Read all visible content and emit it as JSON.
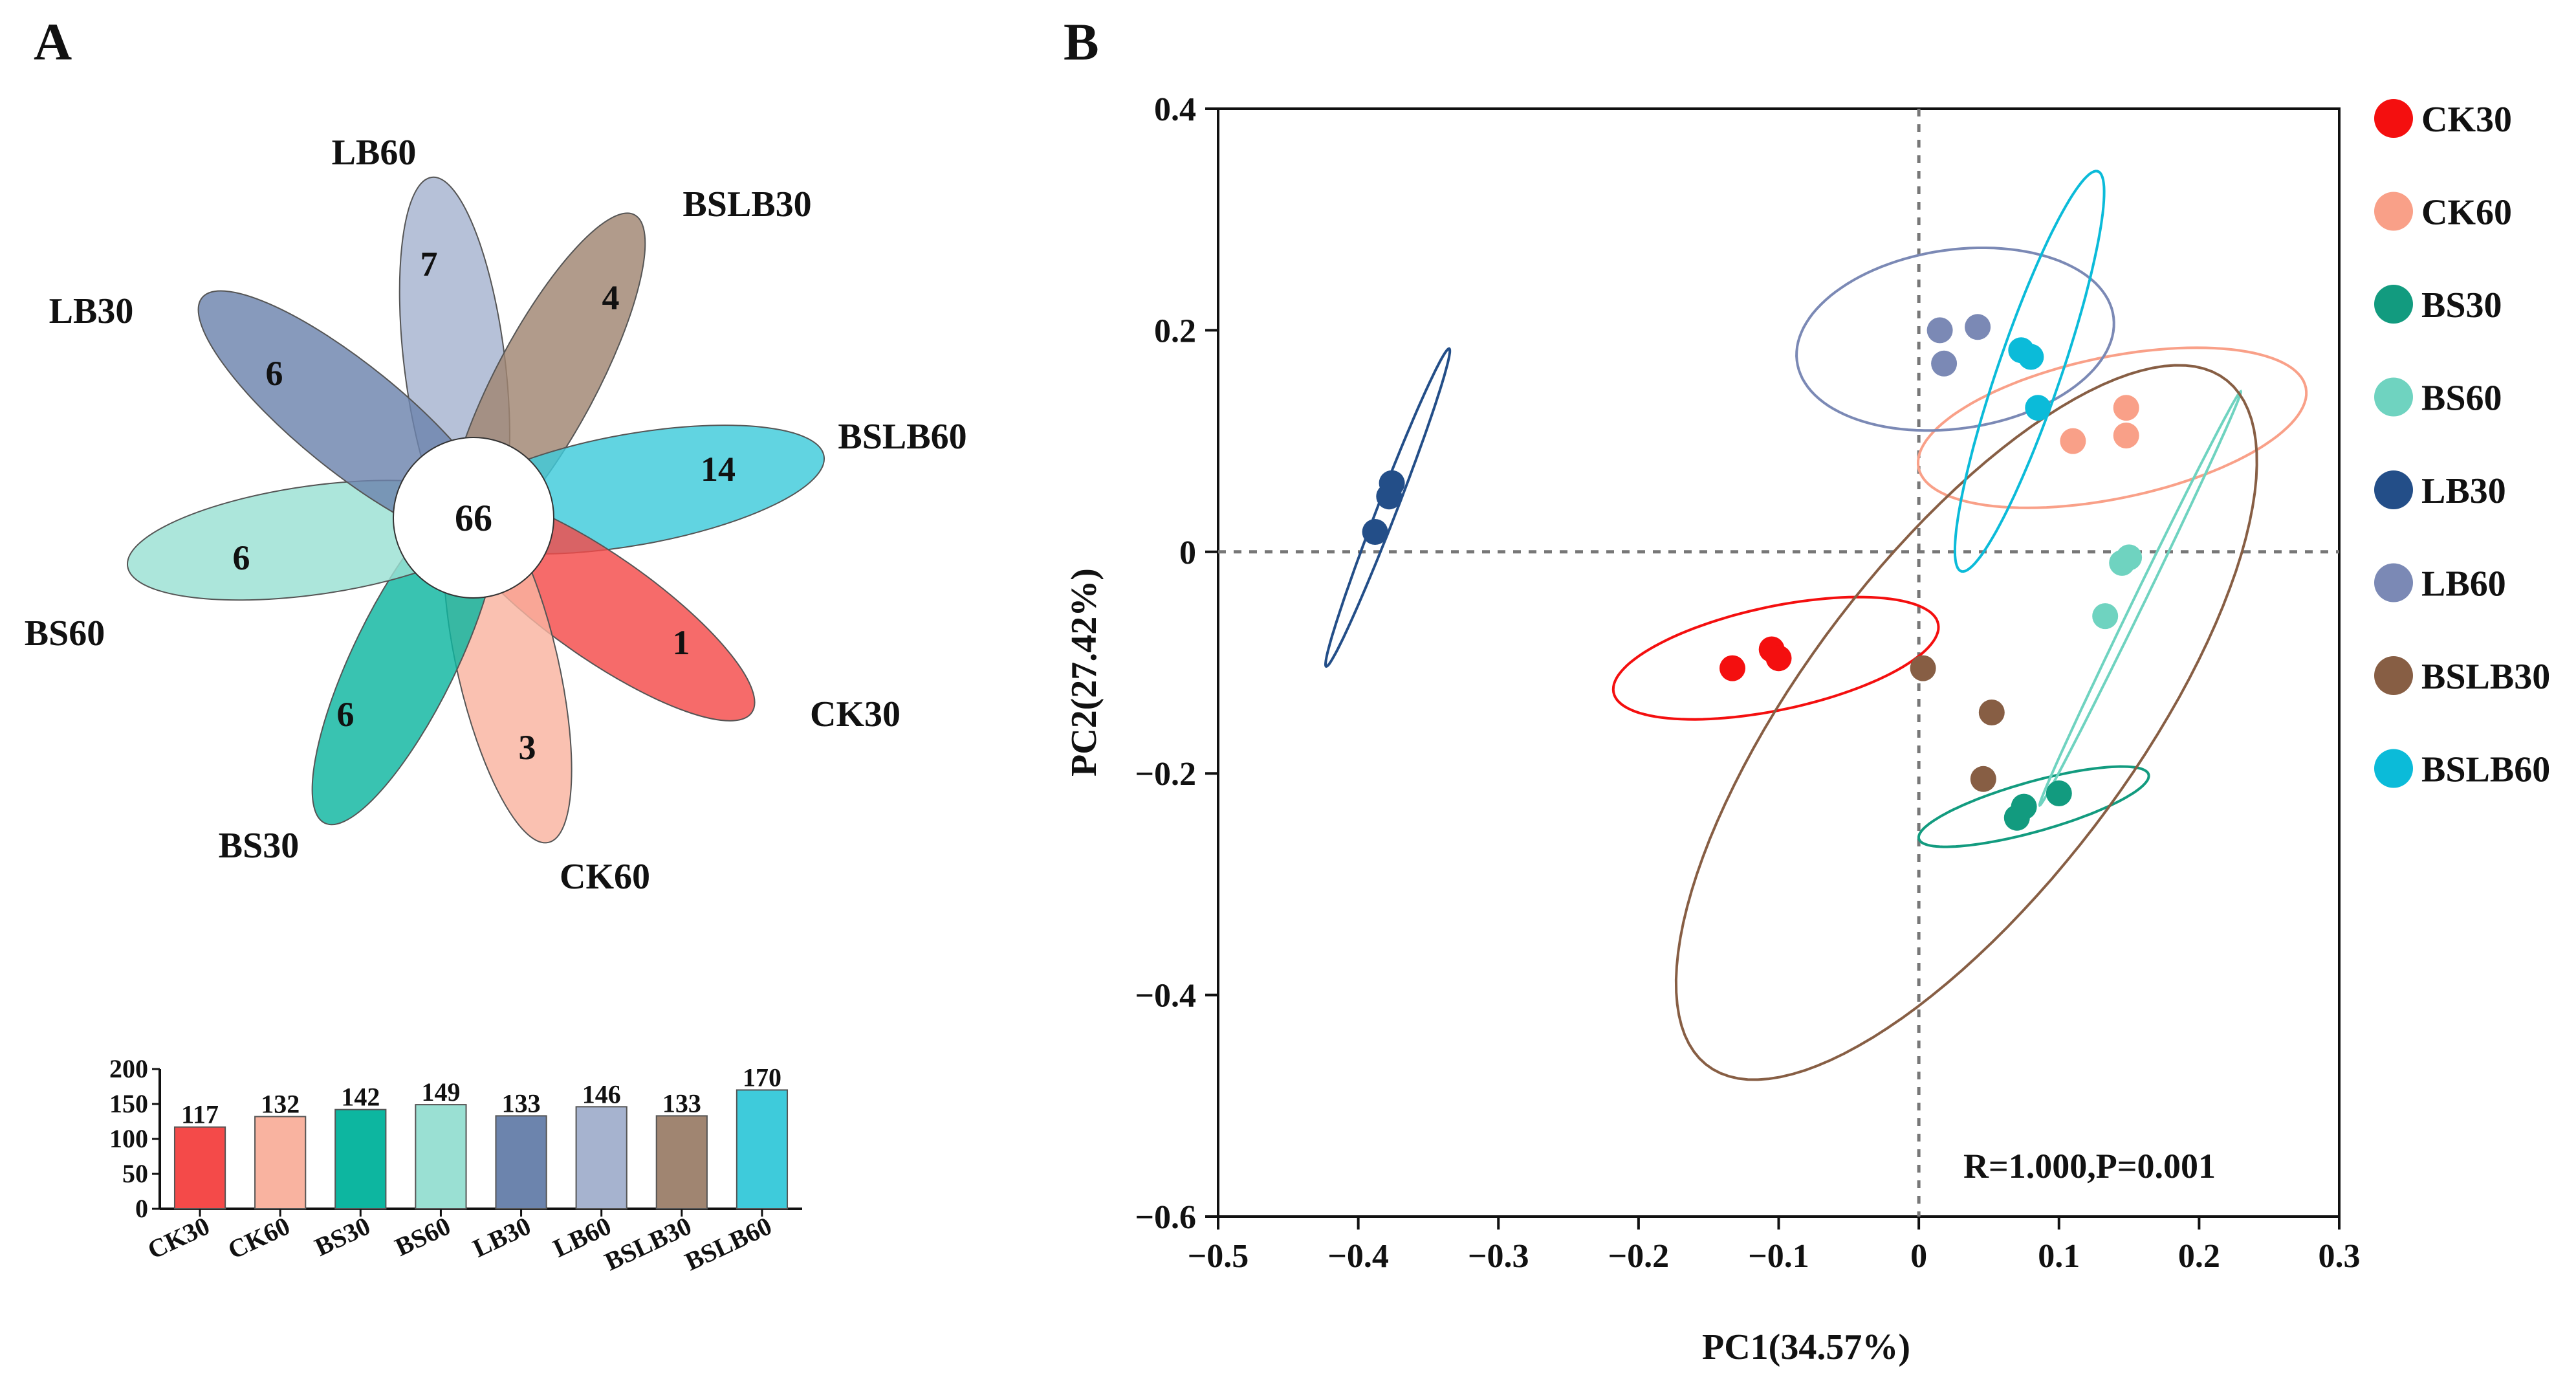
{
  "panels": {
    "a": "A",
    "b": "B"
  },
  "chart_data": [
    {
      "type": "flower-venn",
      "panel": "A",
      "title": "",
      "center_value": 66,
      "petals": [
        {
          "group": "LB60",
          "unique": 7,
          "color": "#a6b3cf"
        },
        {
          "group": "BSLB30",
          "unique": 4,
          "color": "#a08571"
        },
        {
          "group": "BSLB60",
          "unique": 14,
          "color": "#3ecbdb"
        },
        {
          "group": "CK30",
          "unique": 1,
          "color": "#f44a49"
        },
        {
          "group": "CK60",
          "unique": 3,
          "color": "#f9b3a0"
        },
        {
          "group": "BS30",
          "unique": 6,
          "color": "#0db6a0"
        },
        {
          "group": "BS60",
          "unique": 6,
          "color": "#9ae0d3"
        },
        {
          "group": "LB30",
          "unique": 6,
          "color": "#6c84ad"
        }
      ]
    },
    {
      "type": "bar",
      "panel": "A",
      "title": "",
      "xlabel": "",
      "ylabel": "",
      "ylim": [
        0,
        200
      ],
      "yticks": [
        0,
        50,
        100,
        150,
        200
      ],
      "categories": [
        "CK30",
        "CK60",
        "BS30",
        "BS60",
        "LB30",
        "LB60",
        "BSLB30",
        "BSLB60"
      ],
      "values": [
        117,
        132,
        142,
        149,
        133,
        146,
        133,
        170
      ],
      "colors": [
        "#f44a49",
        "#f9b3a0",
        "#0db6a0",
        "#9ae0d3",
        "#6c84ad",
        "#a6b3cf",
        "#a08571",
        "#3ecbdb"
      ]
    },
    {
      "type": "scatter",
      "panel": "B",
      "title": "",
      "xlabel": "PC1(34.57%)",
      "ylabel": "PC2(27.42%)",
      "xlim": [
        -0.5,
        0.3
      ],
      "ylim": [
        -0.6,
        0.4
      ],
      "xticks": [
        -0.5,
        -0.4,
        -0.3,
        -0.2,
        -0.1,
        0,
        0.1,
        0.2,
        0.3
      ],
      "yticks": [
        -0.6,
        -0.4,
        -0.2,
        0,
        0.2,
        0.4
      ],
      "xtick_labels": [
        "−0.5",
        "−0.4",
        "−0.3",
        "−0.2",
        "−0.1",
        "0",
        "0.1",
        "0.2",
        "0.3"
      ],
      "ytick_labels": [
        "−0.6",
        "−0.4",
        "−0.2",
        "0",
        "0.2",
        "0.4"
      ],
      "annotation": "R=1.000,P=0.001",
      "legend_position": "right",
      "series": [
        {
          "name": "CK30",
          "color": "#f40f0f",
          "points": [
            [
              -0.133,
              -0.105
            ],
            [
              -0.105,
              -0.088
            ],
            [
              -0.1,
              -0.096
            ]
          ],
          "ellipse": {
            "cx": -0.102,
            "cy": -0.096,
            "rx": 0.12,
            "ry": 0.046,
            "angle": 16
          }
        },
        {
          "name": "CK60",
          "color": "#f9a088",
          "points": [
            [
              0.11,
              0.1
            ],
            [
              0.148,
              0.13
            ],
            [
              0.148,
              0.105
            ]
          ],
          "ellipse": {
            "cx": 0.138,
            "cy": 0.112,
            "rx": 0.143,
            "ry": 0.063,
            "angle": 16
          }
        },
        {
          "name": "BS30",
          "color": "#129b7f",
          "points": [
            [
              0.07,
              -0.24
            ],
            [
              0.075,
              -0.23
            ],
            [
              0.1,
              -0.218
            ]
          ],
          "ellipse": {
            "cx": 0.082,
            "cy": -0.23,
            "rx": 0.087,
            "ry": 0.022,
            "angle": 20
          }
        },
        {
          "name": "BS60",
          "color": "#6fd3c0",
          "points": [
            [
              0.145,
              -0.01
            ],
            [
              0.133,
              -0.058
            ],
            [
              0.15,
              -0.005
            ]
          ],
          "ellipse": {
            "cx": 0.158,
            "cy": -0.042,
            "rx": 0.2,
            "ry": 0.004,
            "angle": 69
          }
        },
        {
          "name": "LB30",
          "color": "#234e88",
          "points": [
            [
              -0.388,
              0.018
            ],
            [
              -0.378,
              0.05
            ],
            [
              -0.376,
              0.062
            ]
          ],
          "ellipse": {
            "cx": -0.379,
            "cy": 0.04,
            "rx": 0.15,
            "ry": 0.007,
            "angle": 73
          }
        },
        {
          "name": "LB60",
          "color": "#7b89b5",
          "points": [
            [
              0.015,
              0.2
            ],
            [
              0.042,
              0.203
            ],
            [
              0.018,
              0.17
            ]
          ],
          "ellipse": {
            "cx": 0.026,
            "cy": 0.192,
            "rx": 0.115,
            "ry": 0.08,
            "angle": 14
          }
        },
        {
          "name": "BSLB30",
          "color": "#875e44",
          "points": [
            [
              0.003,
              -0.105
            ],
            [
              0.052,
              -0.145
            ],
            [
              0.046,
              -0.205
            ]
          ],
          "ellipse": {
            "cx": 0.034,
            "cy": -0.154,
            "rx": 0.362,
            "ry": 0.126,
            "angle": 61
          }
        },
        {
          "name": "BSLB60",
          "color": "#0bbbd9",
          "points": [
            [
              0.073,
              0.182
            ],
            [
              0.08,
              0.176
            ],
            [
              0.085,
              0.13
            ]
          ],
          "ellipse": {
            "cx": 0.079,
            "cy": 0.163,
            "rx": 0.187,
            "ry": 0.023,
            "angle": 75
          }
        }
      ]
    }
  ]
}
